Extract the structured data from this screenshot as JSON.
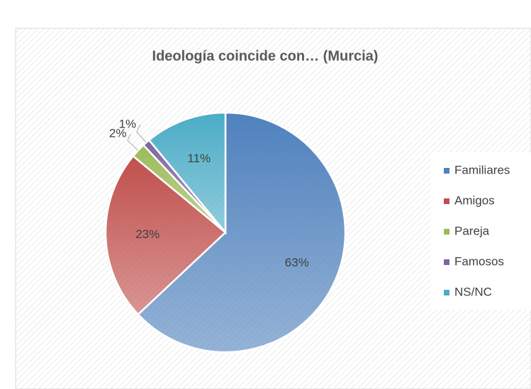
{
  "chart_data": {
    "type": "pie",
    "title": "Ideología coincide con… (Murcia)",
    "categories": [
      "Familiares",
      "Amigos",
      "Pareja",
      "Famosos",
      "NS/NC"
    ],
    "values": [
      63,
      23,
      2,
      1,
      11
    ],
    "value_labels": [
      "63%",
      "23%",
      "2%",
      "1%",
      "11%"
    ],
    "colors": [
      "#4f81bd",
      "#c0504d",
      "#9bbb59",
      "#8064a2",
      "#4bacc6"
    ],
    "legend": "right"
  }
}
